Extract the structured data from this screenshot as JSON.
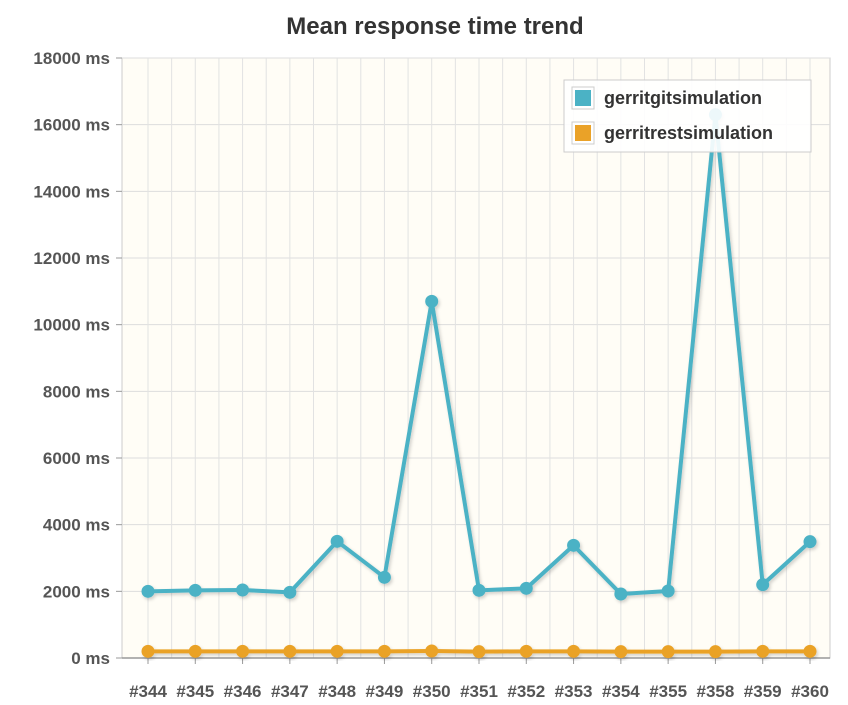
{
  "chart_data": {
    "type": "line",
    "title": "Mean response time trend",
    "xlabel": "",
    "ylabel": "",
    "y_unit": "ms",
    "ylim": [
      0,
      18000
    ],
    "yticks": [
      "0 ms",
      "2000 ms",
      "4000 ms",
      "6000 ms",
      "8000 ms",
      "10000 ms",
      "12000 ms",
      "14000 ms",
      "16000 ms",
      "18000 ms"
    ],
    "ytick_values": [
      0,
      2000,
      4000,
      6000,
      8000,
      10000,
      12000,
      14000,
      16000,
      18000
    ],
    "categories": [
      "#344",
      "#345",
      "#346",
      "#347",
      "#348",
      "#349",
      "#350",
      "#351",
      "#352",
      "#353",
      "#354",
      "#355",
      "#358",
      "#359",
      "#360"
    ],
    "grid": true,
    "legend_position": "top-right",
    "series": [
      {
        "name": "gerritgitsimulation",
        "color": "#4bb2c5",
        "values": [
          2000,
          2030,
          2040,
          1970,
          3500,
          2420,
          10700,
          2030,
          2090,
          3380,
          1920,
          2010,
          16300,
          2200,
          3490
        ]
      },
      {
        "name": "gerritrestsimulation",
        "color": "#eaa228",
        "values": [
          200,
          200,
          200,
          200,
          200,
          200,
          210,
          190,
          200,
          200,
          190,
          190,
          190,
          200,
          200
        ]
      }
    ]
  }
}
